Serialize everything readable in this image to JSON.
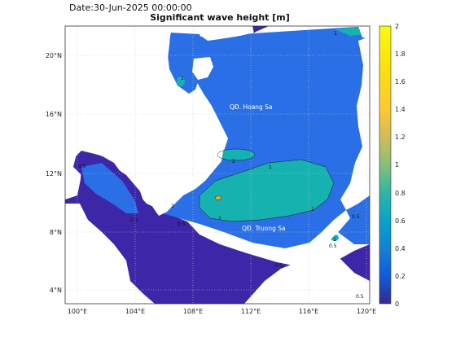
{
  "header": {
    "date": "Date:30-Jun-2025 00:00:00",
    "title": "Significant wave height [m]"
  },
  "map": {
    "lon_ticks": [
      "100°E",
      "104°E",
      "108°E",
      "112°E",
      "116°E",
      "120°E"
    ],
    "lat_ticks": [
      "20°N",
      "16°N",
      "12°N",
      "8°N",
      "4°N"
    ],
    "place_labels": {
      "hoang_sa": "QĐ. Hoang Sa",
      "truong_sa": "QĐ. Truong Sa"
    },
    "contour_labels": [
      "1",
      "1",
      "1",
      "2",
      "2",
      "0.5",
      "0.5",
      "1",
      "1",
      "0.5",
      "0.5",
      "0.5",
      "0.5",
      "1",
      "2",
      "0.5"
    ],
    "land_color": "#ffffff",
    "grid": "dotted"
  },
  "colorbar": {
    "ticks": [
      "2",
      "1.8",
      "1.6",
      "1.4",
      "1.2",
      "1",
      "0.8",
      "0.6",
      "0.4",
      "0.2",
      "0"
    ],
    "colormap": "parula",
    "range": [
      0,
      2
    ]
  }
}
